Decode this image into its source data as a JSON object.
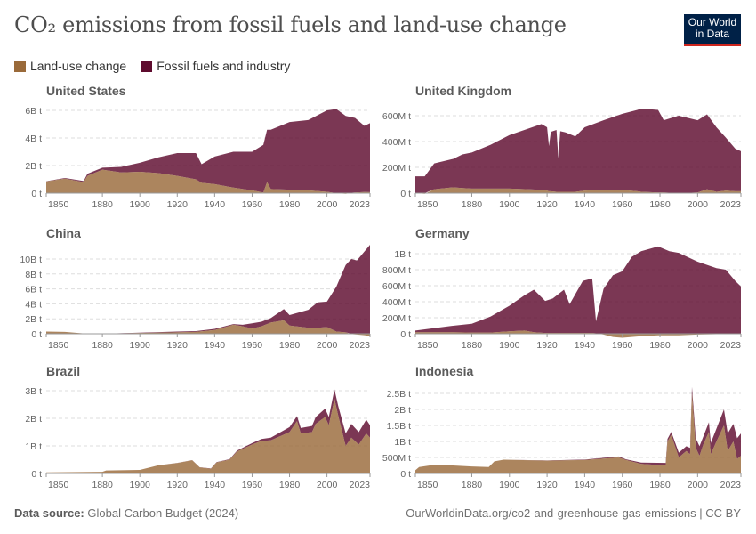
{
  "header": {
    "title": "CO₂ emissions from fossil fuels and land-use change",
    "logo_text": "Our World in Data"
  },
  "colors": {
    "land_use": "#9a6a3a",
    "fossil": "#5e0b2e",
    "gridline": "#dddddd",
    "logo_bg": "#002147",
    "logo_accent": "#ce261e"
  },
  "legend": [
    {
      "label": "Land-use change",
      "color": "#9a6a3a"
    },
    {
      "label": "Fossil fuels and industry",
      "color": "#5e0b2e"
    }
  ],
  "footer": {
    "source_label": "Data source:",
    "source": "Global Carbon Budget (2024)",
    "url": "OurWorldinData.org/co2-and-greenhouse-gas-emissions | CC BY"
  },
  "chart_data": [
    {
      "type": "area",
      "stacked": true,
      "title": "United States",
      "unit": "million tonnes",
      "xlim": [
        1850,
        2023
      ],
      "xticks": [
        1850,
        1880,
        1900,
        1920,
        1940,
        1960,
        1980,
        2000,
        2023
      ],
      "yticks": [
        0,
        2000,
        4000,
        6000
      ],
      "ytick_labels": [
        "0 t",
        "2B t",
        "4B t",
        "6B t"
      ],
      "years": [
        1850,
        1860,
        1870,
        1872,
        1880,
        1890,
        1900,
        1910,
        1920,
        1930,
        1933,
        1940,
        1950,
        1960,
        1966,
        1968,
        1970,
        1980,
        1990,
        2000,
        2005,
        2010,
        2015,
        2020,
        2023
      ],
      "series": [
        {
          "name": "Land-use change",
          "values": [
            850,
            1050,
            800,
            1250,
            1700,
            1500,
            1550,
            1450,
            1250,
            1000,
            750,
            650,
            400,
            200,
            50,
            800,
            300,
            250,
            200,
            100,
            0,
            -50,
            50,
            80,
            70
          ]
        },
        {
          "name": "Fossil fuels and industry",
          "values": [
            10,
            50,
            80,
            150,
            150,
            400,
            650,
            1150,
            1650,
            1900,
            1350,
            2000,
            2600,
            2800,
            3450,
            3800,
            4300,
            4900,
            5100,
            5900,
            6100,
            5600,
            5400,
            4800,
            5000
          ]
        }
      ]
    },
    {
      "type": "area",
      "stacked": true,
      "title": "United Kingdom",
      "unit": "million tonnes",
      "xlim": [
        1850,
        2023
      ],
      "xticks": [
        1850,
        1880,
        1900,
        1920,
        1940,
        1960,
        1980,
        2000,
        2023
      ],
      "yticks": [
        0,
        200,
        400,
        600
      ],
      "ytick_labels": [
        "0 t",
        "200M t",
        "400M t",
        "600M t"
      ],
      "years": [
        1850,
        1855,
        1860,
        1870,
        1875,
        1880,
        1890,
        1900,
        1910,
        1917,
        1920,
        1921,
        1922,
        1925,
        1926,
        1927,
        1930,
        1935,
        1940,
        1950,
        1960,
        1968,
        1970,
        1979,
        1982,
        1990,
        2000,
        2005,
        2010,
        2015,
        2020,
        2023
      ],
      "series": [
        {
          "name": "Land-use change",
          "values": [
            0,
            -5,
            30,
            45,
            40,
            35,
            35,
            35,
            30,
            25,
            20,
            15,
            15,
            10,
            10,
            10,
            10,
            10,
            20,
            25,
            25,
            15,
            10,
            5,
            5,
            0,
            5,
            30,
            10,
            20,
            15,
            15
          ]
        },
        {
          "name": "Fossil fuels and industry",
          "values": [
            130,
            130,
            200,
            220,
            260,
            280,
            340,
            415,
            470,
            510,
            490,
            350,
            460,
            480,
            260,
            470,
            460,
            430,
            490,
            540,
            590,
            630,
            645,
            640,
            560,
            600,
            560,
            580,
            500,
            410,
            330,
            310
          ]
        }
      ]
    },
    {
      "type": "area",
      "stacked": true,
      "title": "China",
      "unit": "million tonnes",
      "xlim": [
        1850,
        2023
      ],
      "xticks": [
        1850,
        1880,
        1900,
        1920,
        1940,
        1960,
        1980,
        2000,
        2023
      ],
      "yticks": [
        0,
        2000,
        4000,
        6000,
        8000,
        10000
      ],
      "ytick_labels": [
        "0 t",
        "2B t",
        "4B t",
        "6B t",
        "8B t",
        "10B t"
      ],
      "years": [
        1850,
        1860,
        1870,
        1880,
        1900,
        1920,
        1930,
        1940,
        1950,
        1955,
        1960,
        1965,
        1970,
        1977,
        1980,
        1990,
        1995,
        2000,
        2005,
        2010,
        2013,
        2016,
        2020,
        2023
      ],
      "series": [
        {
          "name": "Land-use change",
          "values": [
            300,
            250,
            50,
            0,
            100,
            200,
            250,
            500,
            1200,
            1000,
            700,
            1000,
            1500,
            1800,
            1100,
            800,
            800,
            900,
            300,
            200,
            -50,
            -100,
            -200,
            -300
          ]
        },
        {
          "name": "Fossil fuels and industry",
          "values": [
            0,
            0,
            0,
            10,
            50,
            100,
            100,
            150,
            100,
            200,
            700,
            600,
            600,
            1500,
            1400,
            2400,
            3400,
            3400,
            6000,
            9000,
            10000,
            9800,
            11000,
            11900
          ]
        }
      ]
    },
    {
      "type": "area",
      "stacked": true,
      "title": "Germany",
      "unit": "million tonnes",
      "xlim": [
        1850,
        2023
      ],
      "xticks": [
        1850,
        1880,
        1900,
        1920,
        1940,
        1960,
        1980,
        2000,
        2023
      ],
      "yticks": [
        0,
        200,
        400,
        600,
        800,
        1000
      ],
      "ytick_labels": [
        "0 t",
        "200M t",
        "400M t",
        "600M t",
        "800M t",
        "1B t"
      ],
      "years": [
        1850,
        1870,
        1880,
        1890,
        1900,
        1908,
        1913,
        1919,
        1923,
        1929,
        1932,
        1939,
        1944,
        1946,
        1950,
        1955,
        1960,
        1965,
        1970,
        1979,
        1985,
        1990,
        2000,
        2010,
        2015,
        2020,
        2023
      ],
      "series": [
        {
          "name": "Land-use change",
          "values": [
            20,
            20,
            15,
            15,
            30,
            40,
            20,
            10,
            10,
            10,
            10,
            10,
            10,
            5,
            -10,
            -40,
            -50,
            -40,
            -30,
            -20,
            -20,
            -20,
            -10,
            -5,
            0,
            0,
            0
          ]
        },
        {
          "name": "Fossil fuels and industry",
          "values": [
            20,
            80,
            110,
            200,
            320,
            440,
            530,
            400,
            430,
            540,
            360,
            650,
            680,
            150,
            560,
            730,
            780,
            960,
            1030,
            1090,
            1030,
            1010,
            900,
            820,
            800,
            660,
            590
          ]
        }
      ]
    },
    {
      "type": "area",
      "stacked": true,
      "title": "Brazil",
      "unit": "million tonnes",
      "xlim": [
        1850,
        2023
      ],
      "xticks": [
        1850,
        1880,
        1900,
        1920,
        1940,
        1960,
        1980,
        2000,
        2023
      ],
      "yticks": [
        0,
        1000,
        2000,
        3000
      ],
      "ytick_labels": [
        "0 t",
        "1B t",
        "2B t",
        "3B t"
      ],
      "years": [
        1850,
        1880,
        1882,
        1900,
        1910,
        1920,
        1928,
        1932,
        1938,
        1941,
        1948,
        1952,
        1960,
        1965,
        1970,
        1980,
        1984,
        1986,
        1992,
        1994,
        1999,
        2001,
        2004,
        2006,
        2010,
        2013,
        2017,
        2021,
        2023
      ],
      "series": [
        {
          "name": "Land-use change",
          "values": [
            40,
            60,
            110,
            130,
            300,
            380,
            480,
            220,
            170,
            400,
            500,
            800,
            1050,
            1180,
            1200,
            1500,
            1900,
            1450,
            1500,
            1800,
            2050,
            1750,
            2700,
            2100,
            1000,
            1300,
            1050,
            1450,
            1300
          ]
        },
        {
          "name": "Fossil fuels and industry",
          "values": [
            0,
            0,
            0,
            0,
            0,
            5,
            5,
            5,
            10,
            10,
            20,
            30,
            50,
            70,
            100,
            180,
            180,
            200,
            220,
            250,
            300,
            300,
            350,
            350,
            450,
            500,
            450,
            500,
            450
          ]
        }
      ]
    },
    {
      "type": "area",
      "stacked": true,
      "title": "Indonesia",
      "unit": "million tonnes",
      "xlim": [
        1850,
        2023
      ],
      "xticks": [
        1850,
        1880,
        1900,
        1920,
        1940,
        1960,
        1980,
        2000,
        2023
      ],
      "yticks": [
        0,
        500,
        1000,
        1500,
        2000,
        2500
      ],
      "ytick_labels": [
        "0 t",
        "500M t",
        "1B t",
        "1.5B t",
        "2B t",
        "2.5B t"
      ],
      "years": [
        1850,
        1852,
        1860,
        1870,
        1880,
        1889,
        1892,
        1897,
        1920,
        1940,
        1958,
        1962,
        1970,
        1983,
        1984,
        1986,
        1990,
        1994,
        1996,
        1997,
        1999,
        2001,
        2003,
        2006,
        2007,
        2010,
        2014,
        2016,
        2019,
        2021,
        2023
      ],
      "series": [
        {
          "name": "Land-use change",
          "values": [
            100,
            200,
            270,
            250,
            220,
            200,
            380,
            430,
            400,
            420,
            500,
            420,
            300,
            250,
            1000,
            1200,
            500,
            700,
            600,
            2500,
            800,
            550,
            900,
            1300,
            600,
            1000,
            1500,
            700,
            1000,
            450,
            550
          ]
        },
        {
          "name": "Fossil fuels and industry",
          "values": [
            0,
            0,
            0,
            0,
            0,
            0,
            0,
            0,
            5,
            15,
            30,
            20,
            40,
            80,
            80,
            100,
            150,
            150,
            200,
            200,
            300,
            300,
            250,
            300,
            350,
            400,
            500,
            550,
            550,
            650,
            700
          ]
        }
      ]
    }
  ]
}
